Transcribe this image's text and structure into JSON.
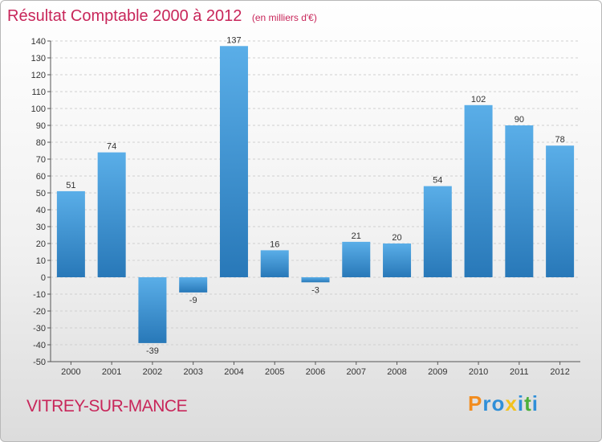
{
  "title": "Résultat Comptable 2000 à 2012",
  "unit_note": "(en milliers d'€)",
  "commune": "VITREY-SUR-MANCE",
  "logo": {
    "letters": [
      "P",
      "r",
      "o",
      "x",
      "i",
      "t",
      "i"
    ],
    "colors": [
      "#f28c1e",
      "#2f8fd8",
      "#2f8fd8",
      "#f2c21e",
      "#2f8fd8",
      "#4caf3b",
      "#2f8fd8"
    ]
  },
  "colors": {
    "bar_light": "#5aaee8",
    "bar_dark": "#2878b8",
    "grid": "#d0d0d0",
    "axis": "#555555",
    "title": "#c8265a"
  },
  "chart_data": {
    "type": "bar",
    "title": "Résultat Comptable 2000 à 2012",
    "ylabel": "en milliers d'€",
    "xlabel": "",
    "categories": [
      "2000",
      "2001",
      "2002",
      "2003",
      "2004",
      "2005",
      "2006",
      "2007",
      "2008",
      "2009",
      "2010",
      "2011",
      "2012"
    ],
    "values": [
      51,
      74,
      -39,
      -9,
      137,
      16,
      -3,
      21,
      20,
      54,
      102,
      90,
      78
    ],
    "ylim": [
      -50,
      140
    ],
    "yticks": [
      -50,
      -40,
      -30,
      -20,
      -10,
      0,
      10,
      20,
      30,
      40,
      50,
      60,
      70,
      80,
      90,
      100,
      110,
      120,
      130,
      140
    ],
    "grid": true
  }
}
